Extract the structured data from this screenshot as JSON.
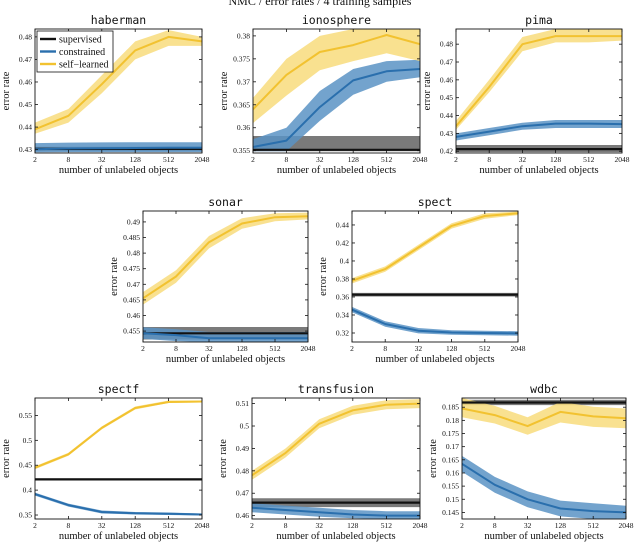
{
  "figure_title": "NMC / error rates / 4 training samples",
  "colors": {
    "supervised": "#111111",
    "supervised_band": "#7a7a7a",
    "constrained": "#2a6fad",
    "constrained_band": "#5b93c4",
    "self_learned": "#f2c230",
    "self_learned_band": "#f8dc7c"
  },
  "chart_data": [
    {
      "type": "line",
      "title": "haberman",
      "xlabel": "number of unlabeled objects",
      "ylabel": "error rate",
      "x_ticks": [
        "2",
        "8",
        "32",
        "128",
        "512",
        "2048"
      ],
      "y_ticks": [
        "0.43",
        "0.44",
        "0.45",
        "0.46",
        "0.47",
        "0.48"
      ],
      "xlim": [
        1,
        11
      ],
      "ylim": [
        0.4285,
        0.4835
      ],
      "legend": {
        "position": "top-left",
        "entries": [
          "supervised",
          "constrained",
          "self−learned"
        ]
      },
      "series": [
        {
          "name": "supervised",
          "x": [
            1,
            11
          ],
          "values": [
            0.4303,
            0.4303
          ],
          "band_low": [
            0.4293,
            0.4293
          ],
          "band_high": [
            0.4313,
            0.4313
          ]
        },
        {
          "name": "constrained",
          "x": [
            1,
            3,
            5,
            7,
            9,
            11
          ],
          "values": [
            0.4302,
            0.4305,
            0.4306,
            0.4307,
            0.4308,
            0.4308
          ],
          "band_low": [
            0.4288,
            0.4289,
            0.4289,
            0.4289,
            0.4289,
            0.4289
          ],
          "band_high": [
            0.4329,
            0.4331,
            0.4332,
            0.4333,
            0.4333,
            0.4333
          ]
        },
        {
          "name": "self−learned",
          "x": [
            1,
            3,
            5,
            7,
            9,
            11
          ],
          "values": [
            0.439,
            0.445,
            0.459,
            0.474,
            0.48,
            0.478
          ],
          "band_low": [
            0.437,
            0.442,
            0.455,
            0.47,
            0.476,
            0.476
          ],
          "band_high": [
            0.442,
            0.448,
            0.463,
            0.478,
            0.483,
            0.48
          ]
        }
      ]
    },
    {
      "type": "line",
      "title": "ionosphere",
      "xlabel": "number of unlabeled objects",
      "ylabel": "error rate",
      "x_ticks": [
        "2",
        "8",
        "32",
        "128",
        "512",
        "2048"
      ],
      "y_ticks": [
        "0.355",
        "0.36",
        "0.365",
        "0.37",
        "0.375",
        "0.38"
      ],
      "xlim": [
        1,
        11
      ],
      "ylim": [
        0.3545,
        0.3815
      ],
      "series": [
        {
          "name": "supervised",
          "x": [
            1,
            11
          ],
          "values": [
            0.3552,
            0.3552
          ],
          "band_low": [
            0.3549,
            0.3549
          ],
          "band_high": [
            0.3582,
            0.3582
          ]
        },
        {
          "name": "constrained",
          "x": [
            1,
            3,
            5,
            7,
            9,
            11
          ],
          "values": [
            0.3558,
            0.3572,
            0.3645,
            0.3703,
            0.3723,
            0.3728
          ],
          "band_low": [
            0.3549,
            0.3549,
            0.3615,
            0.3672,
            0.37,
            0.371
          ],
          "band_high": [
            0.3575,
            0.36,
            0.368,
            0.3728,
            0.3745,
            0.3748
          ]
        },
        {
          "name": "self−learned",
          "x": [
            1,
            3,
            5,
            7,
            9,
            11
          ],
          "values": [
            0.364,
            0.3715,
            0.3765,
            0.378,
            0.3802,
            0.3782
          ],
          "band_low": [
            0.361,
            0.367,
            0.3725,
            0.3745,
            0.3762,
            0.3745
          ],
          "band_high": [
            0.3665,
            0.375,
            0.38,
            0.3815,
            0.3815,
            0.3815
          ]
        }
      ]
    },
    {
      "type": "line",
      "title": "pima",
      "xlabel": "number of unlabeled objects",
      "ylabel": "error rate",
      "x_ticks": [
        "2",
        "8",
        "32",
        "128",
        "512",
        "2048"
      ],
      "y_ticks": [
        "0.42",
        "0.43",
        "0.44",
        "0.45",
        "0.46",
        "0.47",
        "0.48"
      ],
      "xlim": [
        1,
        11
      ],
      "ylim": [
        0.419,
        0.4885
      ],
      "series": [
        {
          "name": "supervised",
          "x": [
            1,
            11
          ],
          "values": [
            0.4212,
            0.4212
          ],
          "band_low": [
            0.4195,
            0.4195
          ],
          "band_high": [
            0.4235,
            0.4235
          ]
        },
        {
          "name": "constrained",
          "x": [
            1,
            3,
            5,
            7,
            9,
            11
          ],
          "values": [
            0.428,
            0.431,
            0.434,
            0.4355,
            0.4355,
            0.4352
          ],
          "band_low": [
            0.426,
            0.429,
            0.432,
            0.433,
            0.433,
            0.433
          ],
          "band_high": [
            0.43,
            0.433,
            0.436,
            0.4375,
            0.4375,
            0.4375
          ]
        },
        {
          "name": "self−learned",
          "x": [
            1,
            3,
            5,
            7,
            9,
            11
          ],
          "values": [
            0.434,
            0.456,
            0.48,
            0.4845,
            0.4845,
            0.4845
          ],
          "band_low": [
            0.432,
            0.453,
            0.476,
            0.481,
            0.481,
            0.482
          ],
          "band_high": [
            0.437,
            0.46,
            0.484,
            0.4885,
            0.4885,
            0.4885
          ]
        }
      ]
    },
    {
      "type": "line",
      "title": "sonar",
      "xlabel": "number of unlabeled objects",
      "ylabel": "error rate",
      "x_ticks": [
        "2",
        "8",
        "32",
        "128",
        "512",
        "2048"
      ],
      "y_ticks": [
        "0.455",
        "0.46",
        "0.465",
        "0.47",
        "0.475",
        "0.48",
        "0.485",
        "0.49"
      ],
      "xlim": [
        1,
        11
      ],
      "ylim": [
        0.4515,
        0.4935
      ],
      "series": [
        {
          "name": "supervised",
          "x": [
            1,
            11
          ],
          "values": [
            0.4543,
            0.4543
          ],
          "band_low": [
            0.4523,
            0.4523
          ],
          "band_high": [
            0.4563,
            0.4563
          ]
        },
        {
          "name": "constrained",
          "x": [
            1,
            3,
            5,
            7,
            9,
            11
          ],
          "values": [
            0.4543,
            0.4537,
            0.4527,
            0.4527,
            0.4527,
            0.4527
          ],
          "band_low": [
            0.4525,
            0.4518,
            0.4515,
            0.4515,
            0.4515,
            0.4515
          ],
          "band_high": [
            0.4562,
            0.4556,
            0.4547,
            0.4547,
            0.4547,
            0.4547
          ]
        },
        {
          "name": "self−learned",
          "x": [
            1,
            3,
            5,
            7,
            9,
            11
          ],
          "values": [
            0.4655,
            0.4725,
            0.4835,
            0.4895,
            0.4915,
            0.4918
          ],
          "band_low": [
            0.4635,
            0.4705,
            0.4815,
            0.4878,
            0.4902,
            0.4908
          ],
          "band_high": [
            0.4675,
            0.4745,
            0.4855,
            0.4912,
            0.4928,
            0.493
          ]
        }
      ]
    },
    {
      "type": "line",
      "title": "spect",
      "xlabel": "number of unlabeled objects",
      "ylabel": "error rate",
      "x_ticks": [
        "2",
        "8",
        "32",
        "128",
        "512",
        "2048"
      ],
      "y_ticks": [
        "0.32",
        "0.34",
        "0.36",
        "0.38",
        "0.4",
        "0.42",
        "0.44"
      ],
      "xlim": [
        1,
        11
      ],
      "ylim": [
        0.31,
        0.4555
      ],
      "series": [
        {
          "name": "supervised",
          "x": [
            1,
            11
          ],
          "values": [
            0.3625,
            0.3625
          ],
          "band_low": [
            0.3605,
            0.3605
          ],
          "band_high": [
            0.3645,
            0.3645
          ]
        },
        {
          "name": "constrained",
          "x": [
            1,
            3,
            5,
            7,
            9,
            11
          ],
          "values": [
            0.346,
            0.33,
            0.3225,
            0.3205,
            0.32,
            0.3195
          ],
          "band_low": [
            0.343,
            0.327,
            0.3195,
            0.318,
            0.3175,
            0.317
          ],
          "band_high": [
            0.349,
            0.333,
            0.3255,
            0.323,
            0.3225,
            0.322
          ]
        },
        {
          "name": "self−learned",
          "x": [
            1,
            3,
            5,
            7,
            9,
            11
          ],
          "values": [
            0.378,
            0.391,
            0.415,
            0.439,
            0.45,
            0.453
          ],
          "band_low": [
            0.375,
            0.388,
            0.412,
            0.436,
            0.447,
            0.451
          ],
          "band_high": [
            0.381,
            0.394,
            0.418,
            0.442,
            0.453,
            0.455
          ]
        }
      ]
    },
    {
      "type": "line",
      "title": "spectf",
      "xlabel": "number of unlabeled objects",
      "ylabel": "error rate",
      "x_ticks": [
        "2",
        "8",
        "32",
        "128",
        "512",
        "2048"
      ],
      "y_ticks": [
        "0.35",
        "0.4",
        "0.45",
        "0.5",
        "0.55"
      ],
      "xlim": [
        1,
        11
      ],
      "ylim": [
        0.342,
        0.585
      ],
      "series": [
        {
          "name": "supervised",
          "x": [
            1,
            11
          ],
          "values": [
            0.4215,
            0.4215
          ],
          "band_low": [
            0.4195,
            0.4195
          ],
          "band_high": [
            0.4235,
            0.4235
          ]
        },
        {
          "name": "constrained",
          "x": [
            1,
            3,
            5,
            7,
            9,
            11
          ],
          "values": [
            0.392,
            0.37,
            0.356,
            0.3535,
            0.3525,
            0.351
          ],
          "band_low": [
            0.389,
            0.367,
            0.353,
            0.351,
            0.35,
            0.349
          ],
          "band_high": [
            0.395,
            0.373,
            0.359,
            0.356,
            0.355,
            0.353
          ]
        },
        {
          "name": "self−learned",
          "x": [
            1,
            3,
            5,
            7,
            9,
            11
          ],
          "values": [
            0.445,
            0.472,
            0.525,
            0.565,
            0.577,
            0.578
          ],
          "band_low": [
            0.442,
            0.469,
            0.522,
            0.562,
            0.575,
            0.576
          ],
          "band_high": [
            0.448,
            0.475,
            0.528,
            0.568,
            0.58,
            0.58
          ]
        }
      ]
    },
    {
      "type": "line",
      "title": "transfusion",
      "xlabel": "number of unlabeled objects",
      "ylabel": "error rate",
      "x_ticks": [
        "2",
        "8",
        "32",
        "128",
        "512",
        "2048"
      ],
      "y_ticks": [
        "0.46",
        "0.47",
        "0.48",
        "0.49",
        "0.5",
        "0.51"
      ],
      "xlim": [
        1,
        11
      ],
      "ylim": [
        0.4585,
        0.5125
      ],
      "series": [
        {
          "name": "supervised",
          "x": [
            1,
            11
          ],
          "values": [
            0.4658,
            0.4658
          ],
          "band_low": [
            0.4638,
            0.4638
          ],
          "band_high": [
            0.4678,
            0.4678
          ]
        },
        {
          "name": "constrained",
          "x": [
            1,
            3,
            5,
            7,
            9,
            11
          ],
          "values": [
            0.4635,
            0.4625,
            0.4615,
            0.4605,
            0.46,
            0.46
          ],
          "band_low": [
            0.4615,
            0.4605,
            0.4595,
            0.4588,
            0.4585,
            0.4585
          ],
          "band_high": [
            0.4655,
            0.4645,
            0.4635,
            0.4625,
            0.462,
            0.462
          ]
        },
        {
          "name": "self−learned",
          "x": [
            1,
            3,
            5,
            7,
            9,
            11
          ],
          "values": [
            0.478,
            0.488,
            0.501,
            0.507,
            0.5095,
            0.51
          ],
          "band_low": [
            0.476,
            0.486,
            0.499,
            0.505,
            0.5075,
            0.508
          ],
          "band_high": [
            0.48,
            0.49,
            0.503,
            0.509,
            0.5115,
            0.512
          ]
        }
      ]
    },
    {
      "type": "line",
      "title": "wdbc",
      "xlabel": "number of unlabeled objects",
      "ylabel": "error rate",
      "x_ticks": [
        "2",
        "8",
        "32",
        "128",
        "512",
        "2048"
      ],
      "y_ticks": [
        "0.145",
        "0.15",
        "0.155",
        "0.16",
        "0.165",
        "0.17",
        "0.175",
        "0.18",
        "0.185"
      ],
      "xlim": [
        1,
        11
      ],
      "ylim": [
        0.1425,
        0.1885
      ],
      "series": [
        {
          "name": "supervised",
          "x": [
            1,
            11
          ],
          "values": [
            0.1868,
            0.1868
          ],
          "band_low": [
            0.1858,
            0.1858
          ],
          "band_high": [
            0.1878,
            0.1878
          ]
        },
        {
          "name": "constrained",
          "x": [
            1,
            3,
            5,
            7,
            9,
            11
          ],
          "values": [
            0.1635,
            0.1555,
            0.15,
            0.1465,
            0.1455,
            0.145
          ],
          "band_low": [
            0.1605,
            0.1525,
            0.147,
            0.1435,
            0.1425,
            0.1425
          ],
          "band_high": [
            0.1665,
            0.1585,
            0.153,
            0.1495,
            0.1485,
            0.1475
          ]
        },
        {
          "name": "self−learned",
          "x": [
            1,
            3,
            5,
            7,
            9,
            11
          ],
          "values": [
            0.1845,
            0.182,
            0.1778,
            0.1832,
            0.1815,
            0.1808
          ],
          "band_low": [
            0.1812,
            0.1788,
            0.1745,
            0.1792,
            0.1775,
            0.177
          ],
          "band_high": [
            0.1885,
            0.1855,
            0.1812,
            0.187,
            0.1852,
            0.1845
          ]
        }
      ]
    }
  ]
}
